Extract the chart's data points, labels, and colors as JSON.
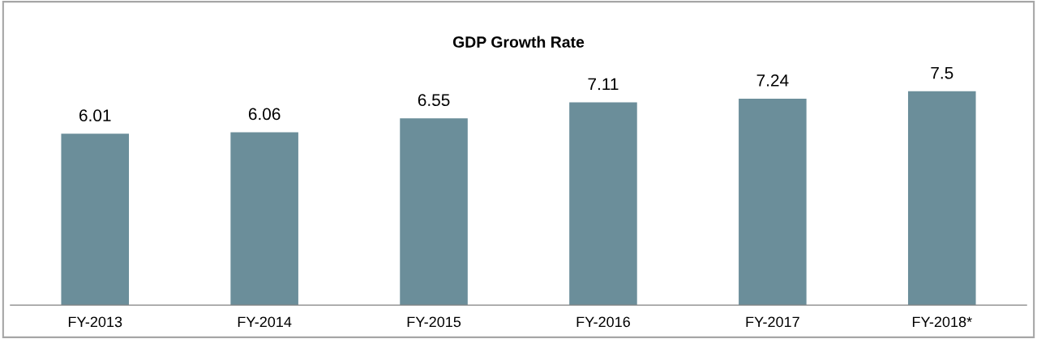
{
  "chart_data": {
    "type": "bar",
    "title": "GDP Growth Rate",
    "categories": [
      "FY-2013",
      "FY-2014",
      "FY-2015",
      "FY-2016",
      "FY-2017",
      "FY-2018*"
    ],
    "values": [
      6.01,
      6.06,
      6.55,
      7.11,
      7.24,
      7.5
    ],
    "color": "#6b8e9a",
    "data_labels": true,
    "grid": false,
    "legend": false
  }
}
